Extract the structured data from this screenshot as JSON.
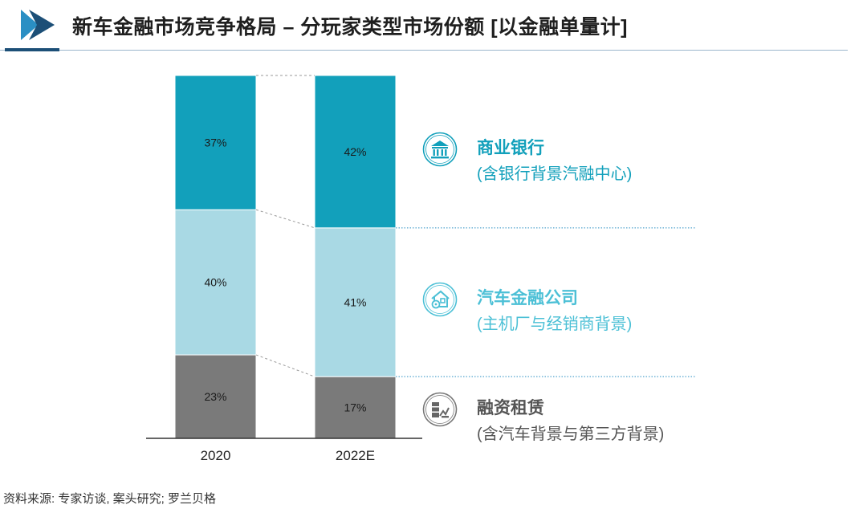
{
  "header": {
    "title": "新车金融市场竞争格局 – 分玩家类型市场份额 [以金融单量计]"
  },
  "chart_data": {
    "type": "bar",
    "stacked": true,
    "categories": [
      "2020",
      "2022E"
    ],
    "series": [
      {
        "name": "融资租赁",
        "values": [
          23,
          17
        ],
        "color": "#7a7a7a",
        "text_color": "#1a1a1a"
      },
      {
        "name": "汽车金融公司",
        "values": [
          40,
          41
        ],
        "color": "#a9d9e4",
        "text_color": "#1a1a1a"
      },
      {
        "name": "商业银行",
        "values": [
          37,
          42
        ],
        "color": "#12a0bb",
        "text_color": "#1a1a1a"
      }
    ],
    "value_suffix": "%",
    "ylim": [
      0,
      100
    ],
    "title": "",
    "xlabel": "",
    "ylabel": ""
  },
  "legend": [
    {
      "title": "商业银行",
      "subtitle": "(含银行背景汽融中心)",
      "color": "#12a0bb",
      "icon": "bank-icon"
    },
    {
      "title": "汽车金融公司",
      "subtitle": "(主机厂与经销商背景)",
      "color": "#4cc0d6",
      "icon": "car-dealer-house-icon"
    },
    {
      "title": "融资租赁",
      "subtitle": "(含汽车背景与第三方背景)",
      "color": "#555555",
      "icon": "leasing-icon"
    }
  ],
  "source": "资料来源: 专家访谈, 案头研究; 罗兰贝格"
}
